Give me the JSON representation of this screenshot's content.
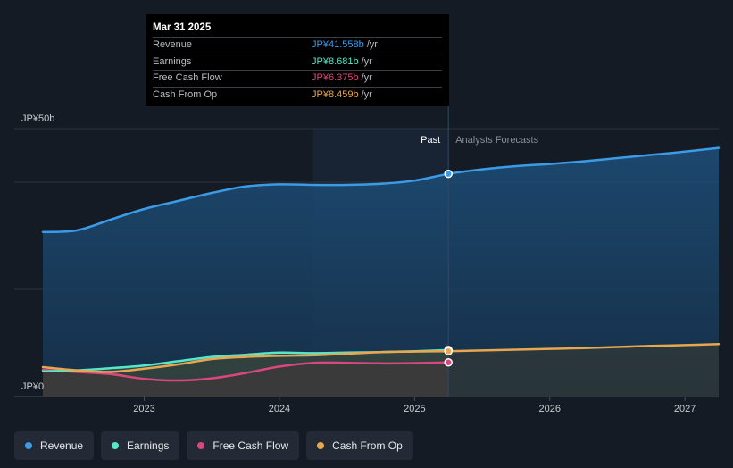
{
  "chart_data": {
    "type": "area",
    "y_unit_label_top": "JP¥50b",
    "y_unit_label_bottom": "JP¥0",
    "ylim": [
      0,
      50
    ],
    "xlim": [
      2022.25,
      2027.25
    ],
    "x_ticks": [
      {
        "value": 2023,
        "label": "2023"
      },
      {
        "value": 2024,
        "label": "2024"
      },
      {
        "value": 2025,
        "label": "2025"
      },
      {
        "value": 2026,
        "label": "2026"
      },
      {
        "value": 2027,
        "label": "2027"
      }
    ],
    "gridlines": [
      0,
      20,
      40,
      50
    ],
    "forecast_start": 2025.25,
    "past_band_start": 2024.25,
    "past_label": "Past",
    "forecast_label": "Analysts Forecasts",
    "series": [
      {
        "name": "Revenue",
        "color": "#3b9be6",
        "values": [
          [
            2022.25,
            30.7
          ],
          [
            2022.5,
            31.0
          ],
          [
            2022.75,
            33.0
          ],
          [
            2023.0,
            35.0
          ],
          [
            2023.25,
            36.5
          ],
          [
            2023.5,
            38.0
          ],
          [
            2023.75,
            39.2
          ],
          [
            2024.0,
            39.6
          ],
          [
            2024.25,
            39.5
          ],
          [
            2024.5,
            39.5
          ],
          [
            2024.75,
            39.7
          ],
          [
            2025.0,
            40.3
          ],
          [
            2025.25,
            41.558
          ],
          [
            2025.5,
            42.4
          ],
          [
            2025.75,
            43.0
          ],
          [
            2026.0,
            43.4
          ],
          [
            2026.25,
            43.9
          ],
          [
            2026.5,
            44.5
          ],
          [
            2026.75,
            45.1
          ],
          [
            2027.0,
            45.7
          ],
          [
            2027.25,
            46.4
          ]
        ],
        "dot_at": 2025.25
      },
      {
        "name": "Earnings",
        "color": "#58e6c9",
        "values": [
          [
            2022.25,
            4.7
          ],
          [
            2022.5,
            4.9
          ],
          [
            2022.75,
            5.3
          ],
          [
            2023.0,
            5.8
          ],
          [
            2023.25,
            6.6
          ],
          [
            2023.5,
            7.4
          ],
          [
            2023.75,
            7.8
          ],
          [
            2024.0,
            8.2
          ],
          [
            2024.25,
            8.1
          ],
          [
            2024.5,
            8.2
          ],
          [
            2024.75,
            8.3
          ],
          [
            2025.0,
            8.45
          ],
          [
            2025.25,
            8.681
          ]
        ]
      },
      {
        "name": "Free Cash Flow",
        "color": "#d9477c",
        "values": [
          [
            2022.25,
            5.0
          ],
          [
            2022.5,
            4.6
          ],
          [
            2022.75,
            4.2
          ],
          [
            2023.0,
            3.3
          ],
          [
            2023.25,
            3.0
          ],
          [
            2023.5,
            3.4
          ],
          [
            2023.75,
            4.4
          ],
          [
            2024.0,
            5.6
          ],
          [
            2024.25,
            6.3
          ],
          [
            2024.5,
            6.3
          ],
          [
            2024.75,
            6.2
          ],
          [
            2025.0,
            6.25
          ],
          [
            2025.25,
            6.375
          ]
        ]
      },
      {
        "name": "Cash From Op",
        "color": "#e8a64e",
        "values": [
          [
            2022.25,
            5.5
          ],
          [
            2022.5,
            4.9
          ],
          [
            2022.75,
            4.6
          ],
          [
            2023.0,
            5.2
          ],
          [
            2023.25,
            6.0
          ],
          [
            2023.5,
            7.0
          ],
          [
            2023.75,
            7.4
          ],
          [
            2024.0,
            7.6
          ],
          [
            2024.25,
            7.7
          ],
          [
            2024.5,
            8.0
          ],
          [
            2024.75,
            8.3
          ],
          [
            2025.0,
            8.4
          ],
          [
            2025.25,
            8.459
          ],
          [
            2025.5,
            8.6
          ],
          [
            2025.75,
            8.75
          ],
          [
            2026.0,
            8.9
          ],
          [
            2026.25,
            9.05
          ],
          [
            2026.5,
            9.25
          ],
          [
            2026.75,
            9.45
          ],
          [
            2027.0,
            9.6
          ],
          [
            2027.25,
            9.8
          ]
        ],
        "dot_at": 2025.25
      }
    ]
  },
  "tooltip": {
    "date": "Mar 31 2025",
    "unit": "/yr",
    "rows": [
      {
        "label": "Revenue",
        "value": "JP¥41.558b",
        "color": "#3b9be6"
      },
      {
        "label": "Earnings",
        "value": "JP¥8.681b",
        "color": "#58e6c9"
      },
      {
        "label": "Free Cash Flow",
        "value": "JP¥6.375b",
        "color": "#d9477c"
      },
      {
        "label": "Cash From Op",
        "value": "JP¥8.459b",
        "color": "#e8a64e"
      }
    ]
  },
  "legend": [
    {
      "label": "Revenue",
      "color": "#3b9be6"
    },
    {
      "label": "Earnings",
      "color": "#58e6c9"
    },
    {
      "label": "Free Cash Flow",
      "color": "#d9477c"
    },
    {
      "label": "Cash From Op",
      "color": "#e8a64e"
    }
  ]
}
